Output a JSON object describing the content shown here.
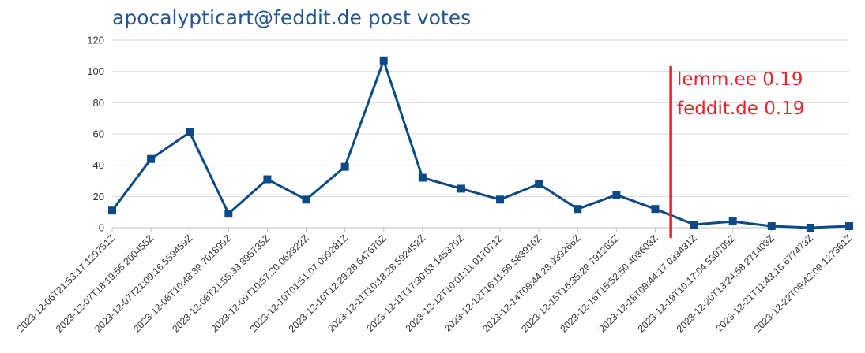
{
  "chart_data": {
    "type": "line",
    "title": "apocalypticart@feddit.de post votes",
    "xlabel": "",
    "ylabel": "",
    "ylim": [
      0,
      120
    ],
    "yticks": [
      0,
      20,
      40,
      60,
      80,
      100,
      120
    ],
    "grid": true,
    "legend": "none",
    "x": [
      "2023-12-06T21:53:17.129751Z",
      "2023-12-07T18:19:55.200455Z",
      "2023-12-07T21:09:16.559459Z",
      "2023-12-08T10:48:39.701899Z",
      "2023-12-08T21:55:33.895735Z",
      "2023-12-09T10:57:20.062322Z",
      "2023-12-10T01:51:07.099281Z",
      "2023-12-10T12:29:28.647670Z",
      "2023-12-11T10:18:28.592452Z",
      "2023-12-11T17:30:53.145379Z",
      "2023-12-12T10:01:11.017071Z",
      "2023-12-12T16:11:59.583910Z",
      "2023-12-14T09:44:28.939266Z",
      "2023-12-15T16:35:29.791263Z",
      "2023-12-16T15:52:50.403603Z",
      "2023-12-18T09:44:17.033431Z",
      "2023-12-19T10:17:04.530709Z",
      "2023-12-20T13:24:58.271403Z",
      "2023-12-21T11:43:15.677473Z",
      "2023-12-22T09:42:09.127361Z"
    ],
    "series": [
      {
        "values": [
          11,
          44,
          61,
          9,
          31,
          18,
          39,
          107,
          32,
          25,
          18,
          28,
          12,
          21,
          12,
          2,
          4,
          1,
          0,
          1
        ]
      }
    ],
    "annotations": [
      {
        "text": "lemm.ee 0.19"
      },
      {
        "text": "feddit.de 0.19"
      }
    ],
    "colors": {
      "line": "#0c4a86",
      "marker": "#0c4a86",
      "grid": "#d9d9d9",
      "axis": "#bfbfbf",
      "annotation": "#e3242b",
      "title": "#1f5592"
    }
  }
}
